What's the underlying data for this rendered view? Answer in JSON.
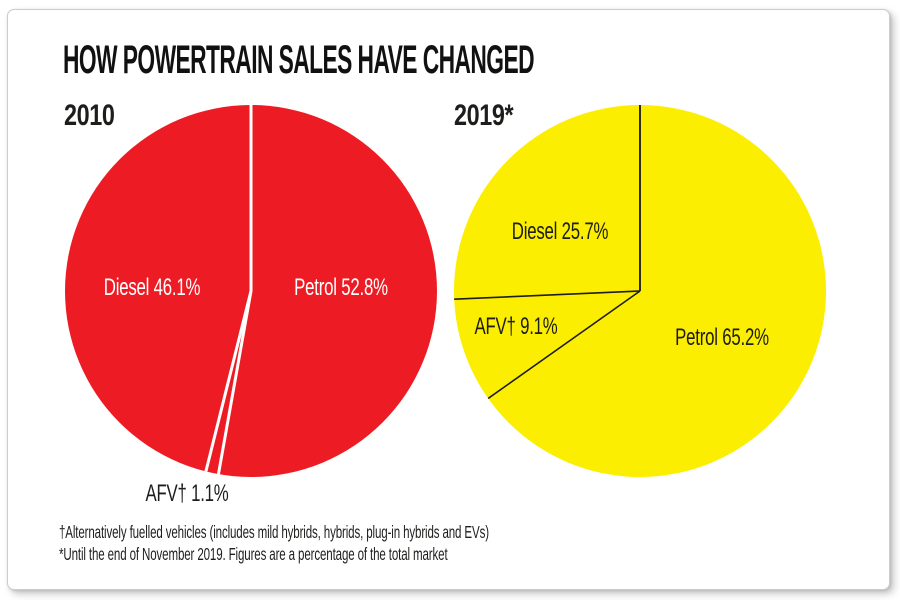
{
  "title": "HOW POWERTRAIN SALES HAVE CHANGED",
  "footnotes": [
    "†Alternatively fuelled vehicles (includes mild hybrids, hybrids, plug-in hybrids and EVs)",
    "*Until the end of November 2019. Figures are a percentage of the total market"
  ],
  "colors": {
    "pie_2010_fill": "#ed1c24",
    "pie_2010_separator": "#ffffff",
    "pie_2019_fill": "#fcee00",
    "pie_2019_separator": "#1d1d1b",
    "text": "#1d1d1b"
  },
  "chart_data": [
    {
      "type": "pie",
      "year_label": "2010",
      "start_angle_deg": 0,
      "direction": "clockwise",
      "fill": "#ed1c24",
      "separator": "#ffffff",
      "separator_width": 3,
      "slices": [
        {
          "name": "Petrol",
          "value": 52.8,
          "display": "Petrol 52.8%"
        },
        {
          "name": "AFV†",
          "value": 1.1,
          "display": "AFV† 1.1%"
        },
        {
          "name": "Diesel",
          "value": 46.1,
          "display": "Diesel 46.1%"
        }
      ]
    },
    {
      "type": "pie",
      "year_label": "2019*",
      "start_angle_deg": 0,
      "direction": "clockwise",
      "fill": "#fcee00",
      "separator": "#1d1d1b",
      "separator_width": 1.6,
      "slices": [
        {
          "name": "Petrol",
          "value": 65.2,
          "display": "Petrol 65.2%"
        },
        {
          "name": "AFV†",
          "value": 9.1,
          "display": "AFV† 9.1%"
        },
        {
          "name": "Diesel",
          "value": 25.7,
          "display": "Diesel 25.7%"
        }
      ]
    }
  ]
}
